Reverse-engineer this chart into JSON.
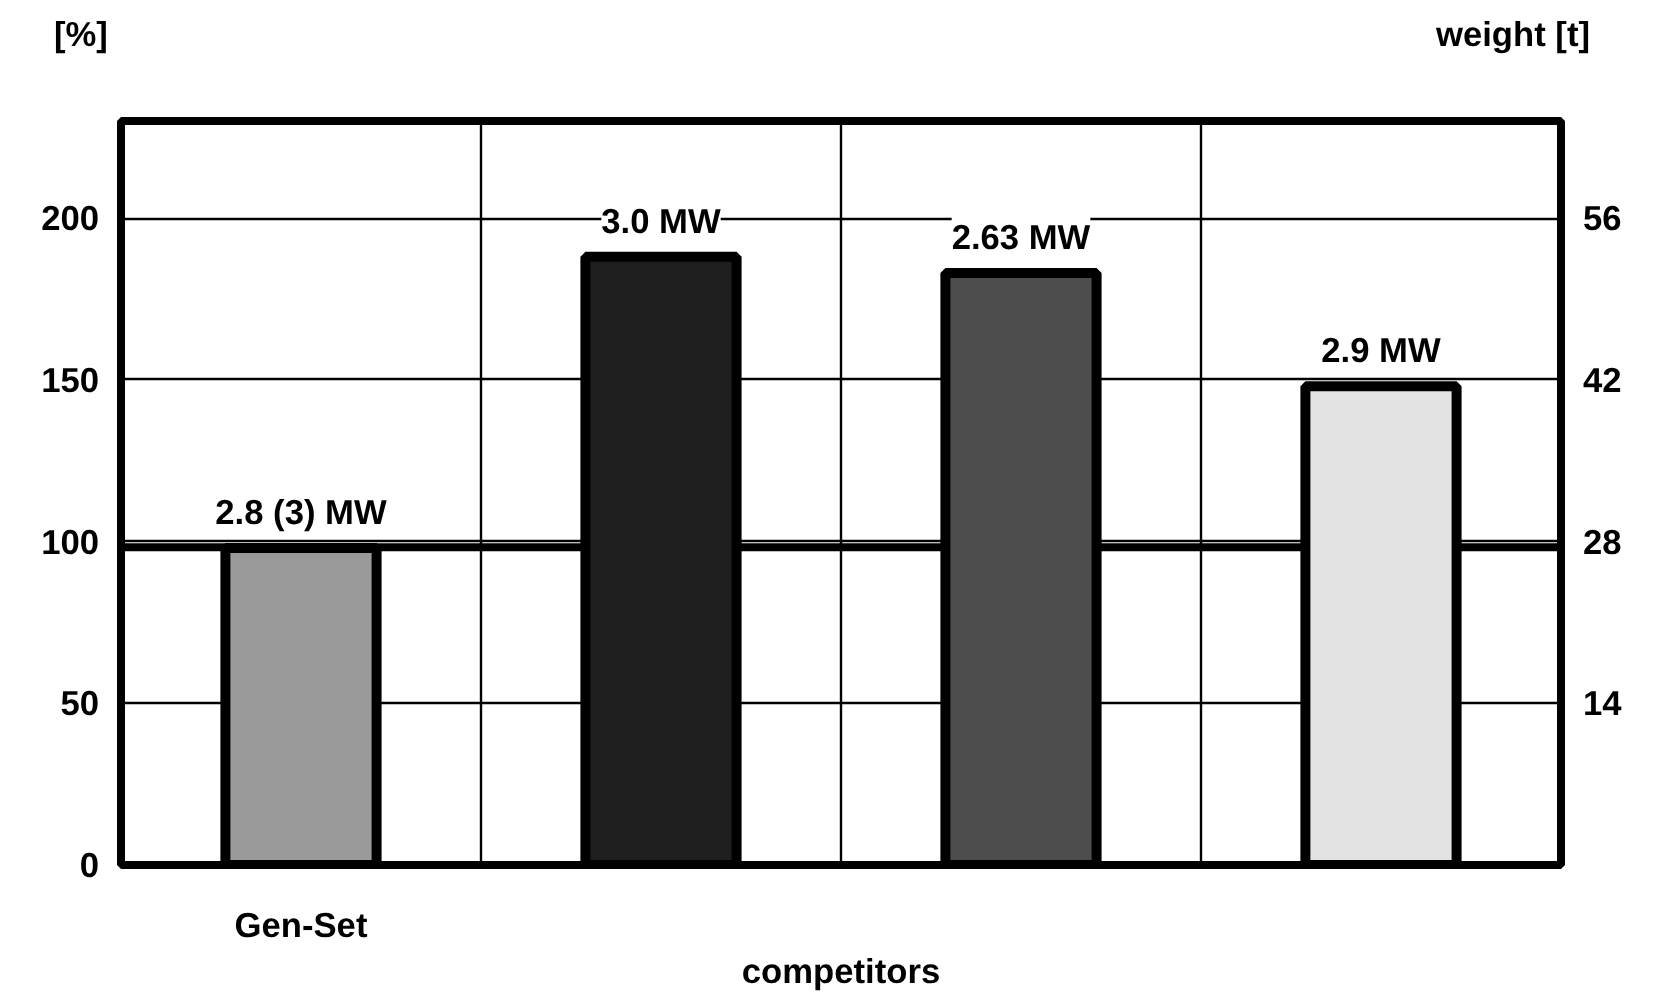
{
  "chart_data": {
    "type": "bar",
    "ylabel": "[%]",
    "y2label": "weight [t]",
    "categories": [
      "Gen-Set",
      null,
      null,
      null
    ],
    "values": [
      98,
      188,
      183,
      148
    ],
    "colors": [
      "#9a9a9a",
      "#1e1e1e",
      "#4d4d4d",
      "#e3e3e3"
    ],
    "ylim": [
      0,
      230
    ],
    "yticks": [
      0,
      50,
      100,
      150,
      200
    ],
    "y2lim": [
      0,
      64.4
    ],
    "y2ticks": [
      14,
      28,
      42,
      56
    ],
    "ref_lines": [
      {
        "axis": "y2",
        "value": 27.5,
        "color": "#000000"
      }
    ],
    "annotations": [
      "2.8 (3) MW",
      "3.0 MW",
      "2.63 MW",
      "2.9 MW",
      "competitors"
    ],
    "grid": true
  }
}
